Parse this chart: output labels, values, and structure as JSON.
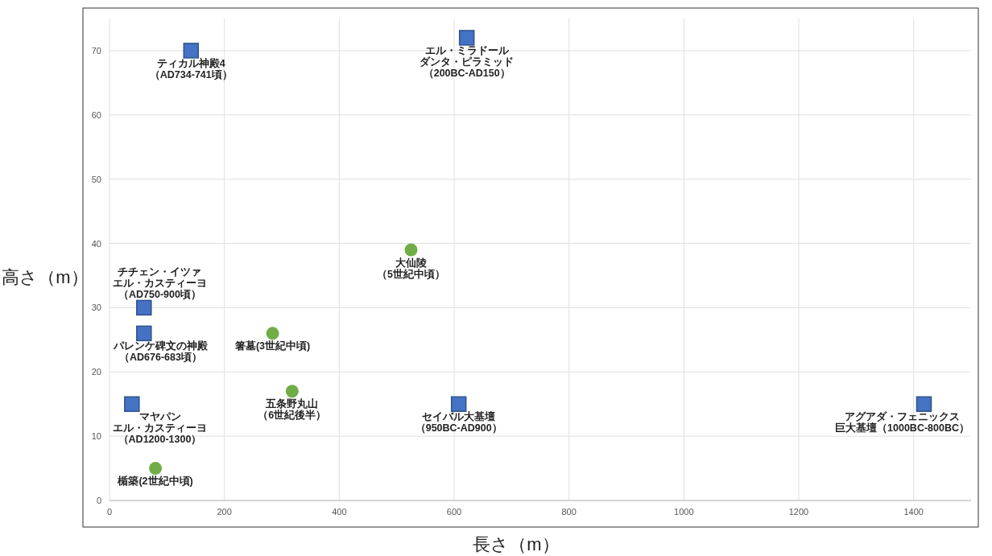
{
  "chart_data": {
    "type": "scatter",
    "xlabel": "長さ（m）",
    "ylabel": "高さ（m）",
    "xlim": [
      0,
      1500
    ],
    "ylim": [
      0,
      75
    ],
    "xticks": [
      0,
      200,
      400,
      600,
      800,
      1000,
      1200,
      1400
    ],
    "yticks": [
      0,
      10,
      20,
      30,
      40,
      50,
      60,
      70
    ],
    "grid": true,
    "series": [
      {
        "color": "#4472c4",
        "marker": "square",
        "x": [
          142,
          622,
          60,
          60,
          39,
          608,
          1418
        ],
        "values": [
          70,
          72,
          30,
          26,
          15,
          15,
          15
        ]
      },
      {
        "color": "#70ad47",
        "marker": "circle",
        "x": [
          525,
          284,
          318,
          80
        ],
        "values": [
          39,
          26,
          17,
          5
        ]
      }
    ],
    "annotations": [
      {
        "text": "ティカル神殿4",
        "x": 142,
        "y": 70
      },
      {
        "text": "（AD734-741頃）",
        "x": 142,
        "y": 70
      },
      {
        "text": "エル・ミラドール",
        "x": 622,
        "y": 72
      },
      {
        "text": "ダンタ・ピラミッド",
        "x": 622,
        "y": 72
      },
      {
        "text": "（200BC-AD150）",
        "x": 622,
        "y": 72
      },
      {
        "text": "チチェン・イツァ",
        "x": 60,
        "y": 30
      },
      {
        "text": "エル・カスティーヨ",
        "x": 60,
        "y": 30
      },
      {
        "text": "（AD750-900頃）",
        "x": 60,
        "y": 30
      },
      {
        "text": "パレンケ碑文の神殿",
        "x": 60,
        "y": 26
      },
      {
        "text": "（AD676-683頃）",
        "x": 60,
        "y": 26
      },
      {
        "text": "マヤパン",
        "x": 39,
        "y": 15
      },
      {
        "text": "エル・カスティーヨ",
        "x": 39,
        "y": 15
      },
      {
        "text": "（AD1200-1300）",
        "x": 39,
        "y": 15
      },
      {
        "text": "セイバル大基壇",
        "x": 608,
        "y": 15
      },
      {
        "text": "（950BC-AD900）",
        "x": 608,
        "y": 15
      },
      {
        "text": "アグアダ・フェニックス",
        "x": 1418,
        "y": 15
      },
      {
        "text": "巨大基壇（1000BC-800BC）",
        "x": 1418,
        "y": 15
      },
      {
        "text": "大仙陵",
        "x": 525,
        "y": 39
      },
      {
        "text": "（5世紀中頃）",
        "x": 525,
        "y": 39
      },
      {
        "text": "箸墓(3世紀中頃)",
        "x": 284,
        "y": 26
      },
      {
        "text": "五条野丸山",
        "x": 318,
        "y": 17
      },
      {
        "text": "（6世紀後半）",
        "x": 318,
        "y": 17
      },
      {
        "text": "楯築(2世紀中頃)",
        "x": 80,
        "y": 5
      }
    ]
  }
}
